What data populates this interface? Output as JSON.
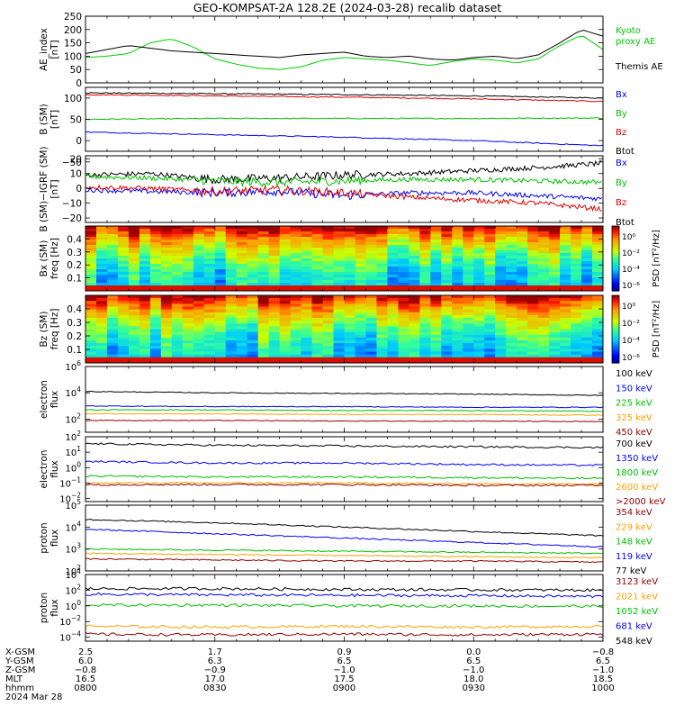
{
  "title": "GEO-KOMPSAT-2A 128.2E (2024-03-28) recalib dataset",
  "time_axis": {
    "ticks": [
      "0800",
      "0830",
      "0900",
      "0930",
      "1000"
    ],
    "rows": [
      {
        "label": "X-GSM",
        "values": [
          "2.5",
          "1.7",
          "0.9",
          "0.0",
          "−0.8"
        ]
      },
      {
        "label": "Y-GSM",
        "values": [
          "6.0",
          "6.3",
          "6.5",
          "6.5",
          "6.5"
        ]
      },
      {
        "label": "Z-GSM",
        "values": [
          "−0.8",
          "−0.9",
          "−1.0",
          "−1.0",
          "−1.0"
        ]
      },
      {
        "label": "MLT",
        "values": [
          "16.5",
          "17.0",
          "17.5",
          "18.0",
          "18.5"
        ]
      },
      {
        "label": "hhmm",
        "values": [
          "0800",
          "0830",
          "0900",
          "0930",
          "1000"
        ]
      }
    ],
    "date": "2024 Mar 28"
  },
  "colors": {
    "black": "#000000",
    "blue": "#0000ff",
    "green": "#00c000",
    "red": "#e00000",
    "orange": "#ffa000",
    "darkred": "#900000",
    "kyoto": "#00cc00"
  },
  "chart_data": [
    {
      "type": "line",
      "id": "ae",
      "ylabel": [
        "AE_index",
        "[nT]"
      ],
      "ylim": [
        0,
        250
      ],
      "yticks": [
        "0",
        "50",
        "100",
        "150",
        "200",
        "250"
      ],
      "series": [
        {
          "name": "Kyoto proxy AE",
          "color": "#00cc00",
          "x": [
            "0800",
            "0805",
            "0810",
            "0815",
            "0820",
            "0825",
            "0830",
            "0835",
            "0840",
            "0845",
            "0850",
            "0855",
            "0900",
            "0905",
            "0910",
            "0915",
            "0920",
            "0925",
            "0930",
            "0935",
            "0940",
            "0945",
            "0950",
            "0955",
            "1000"
          ],
          "values": [
            95,
            100,
            110,
            150,
            165,
            135,
            90,
            70,
            55,
            50,
            60,
            85,
            95,
            90,
            85,
            75,
            65,
            80,
            90,
            85,
            75,
            90,
            140,
            180,
            125
          ]
        },
        {
          "name": "Themis AE",
          "color": "#000000",
          "x": [
            "0800",
            "0805",
            "0810",
            "0815",
            "0820",
            "0825",
            "0830",
            "0835",
            "0840",
            "0845",
            "0850",
            "0855",
            "0900",
            "0905",
            "0910",
            "0915",
            "0920",
            "0925",
            "0930",
            "0935",
            "0940",
            "0945",
            "0950",
            "0955",
            "1000"
          ],
          "values": [
            110,
            125,
            140,
            130,
            120,
            115,
            110,
            105,
            100,
            95,
            105,
            110,
            115,
            100,
            95,
            100,
            90,
            85,
            95,
            100,
            90,
            105,
            150,
            200,
            175
          ]
        }
      ],
      "legend": [
        {
          "text": "Kyoto",
          "color": "#00cc00"
        },
        {
          "text": "proxy AE",
          "color": "#00cc00"
        },
        {
          "text": "Themis AE",
          "color": "#000000"
        }
      ]
    },
    {
      "type": "line",
      "id": "b_sm",
      "ylabel": [
        "B (SM)",
        "[nT]"
      ],
      "ylim": [
        -25,
        125
      ],
      "yticks": [
        "−50",
        "0",
        "50",
        "100"
      ],
      "series": [
        {
          "name": "Bx",
          "color": "#000000",
          "x": [
            "0800",
            "0830",
            "0900",
            "0930",
            "1000"
          ],
          "values": [
            112,
            110,
            108,
            105,
            100
          ]
        },
        {
          "name": "By",
          "color": "#e00000",
          "x": [
            "0800",
            "0830",
            "0900",
            "0930",
            "1000"
          ],
          "values": [
            108,
            105,
            102,
            98,
            92
          ]
        },
        {
          "name": "Bz",
          "color": "#00c000",
          "x": [
            "0800",
            "0830",
            "0900",
            "0930",
            "1000"
          ],
          "values": [
            50,
            52,
            52,
            52,
            53
          ]
        },
        {
          "name": "Btot",
          "color": "#0000ff",
          "x": [
            "0800",
            "0830",
            "0900",
            "0930",
            "1000"
          ],
          "values": [
            20,
            14,
            8,
            0,
            -12
          ]
        }
      ],
      "legend": [
        {
          "text": "Bx",
          "color": "#0000ff"
        },
        {
          "text": "By",
          "color": "#00c000"
        },
        {
          "text": "Bz",
          "color": "#e00000"
        },
        {
          "text": "Btot",
          "color": "#000000"
        }
      ]
    },
    {
      "type": "line",
      "id": "b_igrf",
      "ylabel": [
        "B (SM)−IGRF (SM)",
        "[nT]"
      ],
      "ylim": [
        -23,
        22
      ],
      "yticks": [
        "20",
        "10",
        "0",
        "−10",
        "−20"
      ],
      "series": [
        {
          "name": "Bx",
          "color": "#000000",
          "x": [
            "0800",
            "0815",
            "0830",
            "0845",
            "0900",
            "0915",
            "0930",
            "0945",
            "1000"
          ],
          "values": [
            9,
            10,
            6,
            7,
            9,
            10,
            12,
            14,
            17
          ]
        },
        {
          "name": "By",
          "color": "#00c000",
          "x": [
            "0800",
            "0815",
            "0830",
            "0845",
            "0900",
            "0915",
            "0930",
            "0945",
            "1000"
          ],
          "values": [
            8,
            7,
            5,
            4,
            5,
            6,
            6,
            5,
            4
          ]
        },
        {
          "name": "Bz",
          "color": "#0000ff",
          "x": [
            "0800",
            "0815",
            "0830",
            "0845",
            "0900",
            "0915",
            "0930",
            "0945",
            "1000"
          ],
          "values": [
            -1,
            -2,
            -3,
            -2,
            -5,
            -3,
            -3,
            -5,
            -7
          ]
        },
        {
          "name": "Btot",
          "color": "#e00000",
          "x": [
            "0800",
            "0815",
            "0830",
            "0845",
            "0900",
            "0915",
            "0930",
            "0945",
            "1000"
          ],
          "values": [
            1,
            0,
            -2,
            -1,
            -3,
            -6,
            -8,
            -10,
            -14
          ]
        }
      ],
      "legend": [
        {
          "text": "Bx",
          "color": "#0000ff"
        },
        {
          "text": "By",
          "color": "#00c000"
        },
        {
          "text": "Bz",
          "color": "#e00000"
        },
        {
          "text": "Btot",
          "color": "#000000"
        }
      ]
    },
    {
      "type": "heatmap",
      "id": "bx_spec",
      "ylabel": [
        "Bx (SM)",
        "freq [Hz]"
      ],
      "ylim": [
        0.0,
        0.5
      ],
      "yticks": [
        "0.4",
        "0.3",
        "0.2",
        "0.1"
      ],
      "colorbar": {
        "label": "PSD [nT²/Hz]",
        "ticks": [
          "10⁰",
          "10⁻²",
          "10⁻⁴",
          "10⁻⁶"
        ]
      }
    },
    {
      "type": "heatmap",
      "id": "bz_spec",
      "ylabel": [
        "Bz (SM)",
        "freq [Hz]"
      ],
      "ylim": [
        0.0,
        0.5
      ],
      "yticks": [
        "0.4",
        "0.3",
        "0.2",
        "0.1"
      ],
      "colorbar": {
        "label": "PSD [nT²/Hz]",
        "ticks": [
          "10⁰",
          "10⁻²",
          "10⁻⁴",
          "10⁻⁶"
        ]
      }
    },
    {
      "type": "line",
      "id": "e_low",
      "log": true,
      "ylabel": [
        "electron",
        "flux"
      ],
      "ylim": [
        1,
        6
      ],
      "yticks": [
        {
          "b": "10",
          "e": "6"
        },
        {
          "b": "10",
          "e": "4"
        },
        {
          "b": "10",
          "e": "2"
        }
      ],
      "series": [
        {
          "name": "100 keV",
          "color": "#000000",
          "x": [
            "0800",
            "0830",
            "0900",
            "0930",
            "1000"
          ],
          "values": [
            4.1,
            4.0,
            3.95,
            3.9,
            3.8
          ]
        },
        {
          "name": "150 keV",
          "color": "#0000ff",
          "x": [
            "0800",
            "0830",
            "0900",
            "0930",
            "1000"
          ],
          "values": [
            3.0,
            2.95,
            2.95,
            2.9,
            2.9
          ]
        },
        {
          "name": "225 keV",
          "color": "#00c000",
          "x": [
            "0800",
            "0830",
            "0900",
            "0930",
            "1000"
          ],
          "values": [
            2.7,
            2.7,
            2.65,
            2.65,
            2.6
          ]
        },
        {
          "name": "325 keV",
          "color": "#ffa000",
          "x": [
            "0800",
            "0830",
            "0900",
            "0930",
            "1000"
          ],
          "values": [
            2.4,
            2.4,
            2.35,
            2.35,
            2.3
          ]
        },
        {
          "name": "450 keV",
          "color": "#900000",
          "x": [
            "0800",
            "0830",
            "0900",
            "0930",
            "1000"
          ],
          "values": [
            1.9,
            1.9,
            1.85,
            1.85,
            1.8
          ]
        }
      ],
      "legend": [
        {
          "text": "100 keV",
          "color": "#000000"
        },
        {
          "text": "150 keV",
          "color": "#0000ff"
        },
        {
          "text": "225 keV",
          "color": "#00c000"
        },
        {
          "text": "325 keV",
          "color": "#ffa000"
        },
        {
          "text": "450 keV",
          "color": "#900000"
        }
      ]
    },
    {
      "type": "line",
      "id": "e_high",
      "log": true,
      "ylabel": [
        "electron",
        "flux"
      ],
      "ylim": [
        -2.2,
        2
      ],
      "yticks": [
        {
          "b": "10",
          "e": "2"
        },
        {
          "b": "10",
          "e": "1"
        },
        {
          "b": "10",
          "e": "0"
        },
        {
          "b": "10",
          "e": "−1"
        },
        {
          "b": "10",
          "e": "−2"
        }
      ],
      "series": [
        {
          "name": "700 keV",
          "color": "#000000",
          "x": [
            "0800",
            "0830",
            "0900",
            "0930",
            "1000"
          ],
          "values": [
            1.55,
            1.45,
            1.4,
            1.35,
            1.3
          ]
        },
        {
          "name": "1350 keV",
          "color": "#0000ff",
          "x": [
            "0800",
            "0830",
            "0900",
            "0930",
            "1000"
          ],
          "values": [
            0.4,
            0.3,
            0.3,
            0.2,
            0.15
          ]
        },
        {
          "name": "1800 keV",
          "color": "#00c000",
          "x": [
            "0800",
            "0830",
            "0900",
            "0930",
            "1000"
          ],
          "values": [
            -0.55,
            -0.6,
            -0.6,
            -0.65,
            -0.7
          ]
        },
        {
          "name": "2600 keV",
          "color": "#ffa000",
          "x": [
            "0800",
            "0830",
            "0900",
            "0930",
            "1000"
          ],
          "values": [
            -1.0,
            -1.0,
            -1.0,
            -1.05,
            -1.05
          ]
        },
        {
          "name": ">2000 keV",
          "color": "#900000",
          "x": [
            "0800",
            "0830",
            "0900",
            "0930",
            "1000"
          ],
          "values": [
            -1.1,
            -1.1,
            -1.1,
            -1.15,
            -1.15
          ]
        }
      ],
      "legend": [
        {
          "text": "700 keV",
          "color": "#000000"
        },
        {
          "text": "1350 keV",
          "color": "#0000ff"
        },
        {
          "text": "1800 keV",
          "color": "#00c000"
        },
        {
          "text": "2600 keV",
          "color": "#ffa000"
        },
        {
          "text": ">2000 keV",
          "color": "#900000"
        }
      ]
    },
    {
      "type": "line",
      "id": "p_low",
      "log": true,
      "ylabel": [
        "proton",
        "flux"
      ],
      "ylim": [
        2,
        5
      ],
      "yticks": [
        {
          "b": "10",
          "e": "5"
        },
        {
          "b": "10",
          "e": "4"
        },
        {
          "b": "10",
          "e": "3"
        },
        {
          "b": "10",
          "e": "2"
        }
      ],
      "series": [
        {
          "name": "354 keV",
          "color": "#000000",
          "x": [
            "0800",
            "0830",
            "0900",
            "0930",
            "1000"
          ],
          "values": [
            4.35,
            4.2,
            4.0,
            3.8,
            3.6
          ]
        },
        {
          "name": "229 keV",
          "color": "#0000ff",
          "x": [
            "0800",
            "0830",
            "0900",
            "0930",
            "1000"
          ],
          "values": [
            3.9,
            3.7,
            3.5,
            3.3,
            3.1
          ]
        },
        {
          "name": "148 keV",
          "color": "#00c000",
          "x": [
            "0800",
            "0830",
            "0900",
            "0930",
            "1000"
          ],
          "values": [
            3.0,
            2.95,
            2.9,
            2.85,
            2.8
          ]
        },
        {
          "name": "119 keV",
          "color": "#ffa000",
          "x": [
            "0800",
            "0830",
            "0900",
            "0930",
            "1000"
          ],
          "values": [
            2.8,
            2.75,
            2.7,
            2.65,
            2.6
          ]
        },
        {
          "name": "77 keV",
          "color": "#900000",
          "x": [
            "0800",
            "0830",
            "0900",
            "0930",
            "1000"
          ],
          "values": [
            2.55,
            2.5,
            2.45,
            2.45,
            2.4
          ]
        }
      ],
      "legend": [
        {
          "text": "354 keV",
          "color": "#900000"
        },
        {
          "text": "229 keV",
          "color": "#ffa000"
        },
        {
          "text": "148 keV",
          "color": "#00c000"
        },
        {
          "text": "119 keV",
          "color": "#0000ff"
        },
        {
          "text": "77 keV",
          "color": "#000000"
        }
      ]
    },
    {
      "type": "line",
      "id": "p_high",
      "log": true,
      "ylabel": [
        "proton",
        "flux"
      ],
      "ylim": [
        -4.5,
        4
      ],
      "yticks": [
        {
          "b": "10",
          "e": "4"
        },
        {
          "b": "10",
          "e": "2"
        },
        {
          "b": "10",
          "e": "0"
        },
        {
          "b": "10",
          "e": "−2"
        },
        {
          "b": "10",
          "e": "−4"
        }
      ],
      "series": [
        {
          "name": "3123 keV",
          "color": "#000000",
          "x": [
            "0800",
            "0830",
            "0900",
            "0930",
            "1000"
          ],
          "values": [
            2.2,
            2.2,
            2.1,
            2.05,
            2.0
          ]
        },
        {
          "name": "2021 keV",
          "color": "#0000ff",
          "x": [
            "0800",
            "0830",
            "0900",
            "0930",
            "1000"
          ],
          "values": [
            1.5,
            1.4,
            1.35,
            1.3,
            1.2
          ]
        },
        {
          "name": "1052 keV",
          "color": "#00c000",
          "x": [
            "0800",
            "0830",
            "0900",
            "0930",
            "1000"
          ],
          "values": [
            0.1,
            0.1,
            0.0,
            0.0,
            -0.05
          ]
        },
        {
          "name": "681 keV",
          "color": "#ffa000",
          "x": [
            "0800",
            "0830",
            "0900",
            "0930",
            "1000"
          ],
          "values": [
            -2.6,
            -2.7,
            -2.6,
            -2.7,
            -2.6
          ]
        },
        {
          "name": "548 keV",
          "color": "#900000",
          "x": [
            "0800",
            "0830",
            "0900",
            "0930",
            "1000"
          ],
          "values": [
            -3.6,
            -3.7,
            -3.6,
            -3.7,
            -3.6
          ]
        }
      ],
      "legend": [
        {
          "text": "3123 keV",
          "color": "#900000"
        },
        {
          "text": "2021 keV",
          "color": "#ffa000"
        },
        {
          "text": "1052 keV",
          "color": "#00c000"
        },
        {
          "text": "681 keV",
          "color": "#0000ff"
        },
        {
          "text": "548 keV",
          "color": "#000000"
        }
      ]
    }
  ]
}
